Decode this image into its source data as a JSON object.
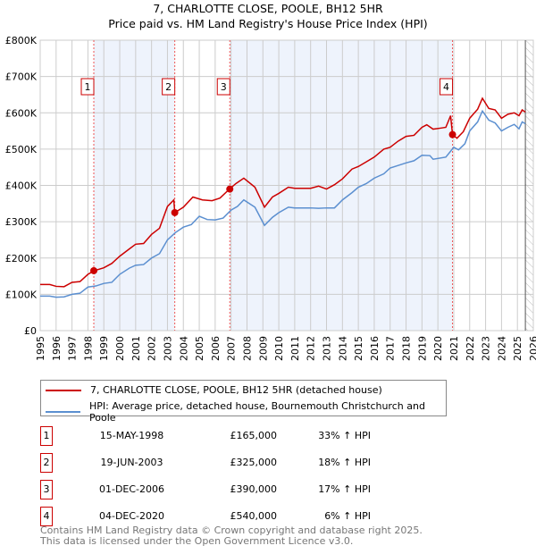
{
  "chart_data": {
    "type": "line",
    "title": "7, CHARLOTTE CLOSE, POOLE, BH12 5HR",
    "subtitle": "Price paid vs. HM Land Registry's House Price Index (HPI)",
    "xlim": [
      1995,
      2026
    ],
    "ylim": [
      0,
      800000
    ],
    "y_ticks": [
      {
        "v": 0,
        "l": "£0"
      },
      {
        "v": 100000,
        "l": "£100K"
      },
      {
        "v": 200000,
        "l": "£200K"
      },
      {
        "v": 300000,
        "l": "£300K"
      },
      {
        "v": 400000,
        "l": "£400K"
      },
      {
        "v": 500000,
        "l": "£500K"
      },
      {
        "v": 600000,
        "l": "£600K"
      },
      {
        "v": 700000,
        "l": "£700K"
      },
      {
        "v": 800000,
        "l": "£800K"
      }
    ],
    "x_ticks": [
      "1995",
      "1996",
      "1997",
      "1998",
      "1999",
      "2000",
      "2001",
      "2002",
      "2003",
      "2004",
      "2005",
      "2006",
      "2007",
      "2008",
      "2009",
      "2010",
      "2011",
      "2012",
      "2013",
      "2014",
      "2015",
      "2016",
      "2017",
      "2018",
      "2019",
      "2020",
      "2021",
      "2022",
      "2023",
      "2024",
      "2025",
      "2026"
    ],
    "series": [
      {
        "name": "7, CHARLOTTE CLOSE, POOLE, BH12 5HR (detached house)",
        "color": "#cc0000",
        "points": [
          [
            1995,
            127000
          ],
          [
            1995.6,
            127000
          ],
          [
            1996,
            122000
          ],
          [
            1996.5,
            121000
          ],
          [
            1997,
            133000
          ],
          [
            1997.5,
            135000
          ],
          [
            1998,
            155000
          ],
          [
            1998.4,
            165000
          ],
          [
            1999,
            173000
          ],
          [
            1999.5,
            185000
          ],
          [
            2000,
            205000
          ],
          [
            2000.6,
            225000
          ],
          [
            2001,
            238000
          ],
          [
            2001.5,
            240000
          ],
          [
            2002,
            265000
          ],
          [
            2002.5,
            282000
          ],
          [
            2003,
            342000
          ],
          [
            2003.4,
            360000
          ],
          [
            2003.46,
            325000
          ],
          [
            2004,
            340000
          ],
          [
            2004.6,
            368000
          ],
          [
            2005.2,
            360000
          ],
          [
            2005.8,
            358000
          ],
          [
            2006.3,
            365000
          ],
          [
            2006.9,
            390000
          ],
          [
            2007.3,
            405000
          ],
          [
            2007.8,
            420000
          ],
          [
            2008.5,
            395000
          ],
          [
            2009.1,
            340000
          ],
          [
            2009.6,
            368000
          ],
          [
            2010,
            378000
          ],
          [
            2010.6,
            395000
          ],
          [
            2011,
            392000
          ],
          [
            2012,
            392000
          ],
          [
            2012.5,
            398000
          ],
          [
            2013,
            390000
          ],
          [
            2013.5,
            402000
          ],
          [
            2014,
            418000
          ],
          [
            2014.6,
            445000
          ],
          [
            2015,
            452000
          ],
          [
            2015.5,
            465000
          ],
          [
            2016,
            478000
          ],
          [
            2016.6,
            500000
          ],
          [
            2017,
            505000
          ],
          [
            2017.5,
            522000
          ],
          [
            2018,
            535000
          ],
          [
            2018.5,
            538000
          ],
          [
            2019,
            560000
          ],
          [
            2019.3,
            567000
          ],
          [
            2019.7,
            555000
          ],
          [
            2020.2,
            558000
          ],
          [
            2020.5,
            560000
          ],
          [
            2020.8,
            592000
          ],
          [
            2020.92,
            540000
          ],
          [
            2021.2,
            530000
          ],
          [
            2021.6,
            548000
          ],
          [
            2022,
            585000
          ],
          [
            2022.5,
            610000
          ],
          [
            2022.8,
            640000
          ],
          [
            2023.2,
            612000
          ],
          [
            2023.6,
            608000
          ],
          [
            2024,
            585000
          ],
          [
            2024.4,
            596000
          ],
          [
            2024.8,
            600000
          ],
          [
            2025.1,
            592000
          ],
          [
            2025.3,
            608000
          ],
          [
            2025.5,
            602000
          ]
        ]
      },
      {
        "name": "HPI: Average price, detached house, Bournemouth Christchurch and Poole",
        "color": "#5b8fd0",
        "points": [
          [
            1995,
            95000
          ],
          [
            1995.6,
            95000
          ],
          [
            1996,
            92000
          ],
          [
            1996.5,
            93000
          ],
          [
            1997,
            100000
          ],
          [
            1997.5,
            103000
          ],
          [
            1998,
            120000
          ],
          [
            1998.5,
            123000
          ],
          [
            1999,
            130000
          ],
          [
            1999.5,
            133000
          ],
          [
            2000,
            155000
          ],
          [
            2000.6,
            172000
          ],
          [
            2001,
            180000
          ],
          [
            2001.5,
            182000
          ],
          [
            2002,
            200000
          ],
          [
            2002.5,
            212000
          ],
          [
            2003,
            250000
          ],
          [
            2003.5,
            270000
          ],
          [
            2004,
            285000
          ],
          [
            2004.5,
            292000
          ],
          [
            2005,
            315000
          ],
          [
            2005.5,
            306000
          ],
          [
            2006,
            305000
          ],
          [
            2006.5,
            310000
          ],
          [
            2007,
            332000
          ],
          [
            2007.4,
            342000
          ],
          [
            2007.8,
            360000
          ],
          [
            2008.5,
            340000
          ],
          [
            2009.1,
            290000
          ],
          [
            2009.6,
            312000
          ],
          [
            2010,
            325000
          ],
          [
            2010.6,
            340000
          ],
          [
            2011,
            338000
          ],
          [
            2012,
            338000
          ],
          [
            2012.5,
            337000
          ],
          [
            2013,
            338000
          ],
          [
            2013.5,
            338000
          ],
          [
            2014,
            360000
          ],
          [
            2014.6,
            380000
          ],
          [
            2015,
            395000
          ],
          [
            2015.5,
            405000
          ],
          [
            2016,
            420000
          ],
          [
            2016.6,
            432000
          ],
          [
            2017,
            448000
          ],
          [
            2017.5,
            455000
          ],
          [
            2018,
            462000
          ],
          [
            2018.5,
            468000
          ],
          [
            2019,
            483000
          ],
          [
            2019.5,
            482000
          ],
          [
            2019.7,
            472000
          ],
          [
            2020.5,
            478000
          ],
          [
            2021,
            505000
          ],
          [
            2021.3,
            498000
          ],
          [
            2021.7,
            515000
          ],
          [
            2022,
            550000
          ],
          [
            2022.5,
            575000
          ],
          [
            2022.8,
            605000
          ],
          [
            2023.2,
            580000
          ],
          [
            2023.6,
            572000
          ],
          [
            2024,
            550000
          ],
          [
            2024.4,
            560000
          ],
          [
            2024.8,
            568000
          ],
          [
            2025.1,
            556000
          ],
          [
            2025.3,
            575000
          ],
          [
            2025.5,
            570000
          ]
        ]
      }
    ],
    "sales": [
      {
        "n": "1",
        "x": 1998.37,
        "y": 165000,
        "date": "15-MAY-1998",
        "price": "£165,000",
        "hpi": "33% ↑ HPI"
      },
      {
        "n": "2",
        "x": 2003.46,
        "y": 325000,
        "date": "19-JUN-2003",
        "price": "£325,000",
        "hpi": "18% ↑ HPI"
      },
      {
        "n": "3",
        "x": 2006.92,
        "y": 390000,
        "date": "01-DEC-2006",
        "price": "£390,000",
        "hpi": "17% ↑ HPI"
      },
      {
        "n": "4",
        "x": 2020.92,
        "y": 540000,
        "date": "04-DEC-2020",
        "price": "£540,000",
        "hpi": "6% ↑ HPI"
      }
    ],
    "forecast_start": 2025.5
  },
  "footer": {
    "line1": "Contains HM Land Registry data © Crown copyright and database right 2025.",
    "line2": "This data is licensed under the Open Government Licence v3.0."
  }
}
